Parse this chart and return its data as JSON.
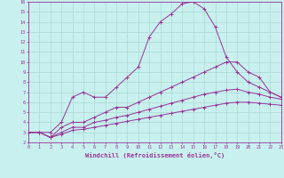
{
  "xlabel": "Windchill (Refroidissement éolien,°C)",
  "bg_color": "#c8f0ee",
  "grid_color": "#aad8d4",
  "line_color": "#993399",
  "xmin": 0,
  "xmax": 23,
  "ymin": 2,
  "ymax": 16,
  "lines": [
    {
      "x": [
        0,
        1,
        2,
        3,
        4,
        5,
        6,
        7,
        8,
        9,
        10,
        11,
        12,
        13,
        14,
        15,
        16,
        17,
        18,
        19,
        20,
        21,
        22,
        23
      ],
      "y": [
        3.0,
        3.0,
        3.0,
        4.0,
        6.5,
        7.0,
        6.5,
        6.5,
        7.5,
        8.5,
        9.5,
        12.5,
        14.0,
        14.8,
        15.8,
        16.0,
        15.3,
        13.5,
        10.5,
        9.0,
        8.0,
        7.5,
        7.0,
        6.5
      ]
    },
    {
      "x": [
        0,
        1,
        2,
        3,
        4,
        5,
        6,
        7,
        8,
        9,
        10,
        11,
        12,
        13,
        14,
        15,
        16,
        17,
        18,
        19,
        20,
        21,
        22,
        23
      ],
      "y": [
        3.0,
        3.0,
        2.5,
        3.5,
        4.0,
        4.0,
        4.5,
        5.0,
        5.5,
        5.5,
        6.0,
        6.5,
        7.0,
        7.5,
        8.0,
        8.5,
        9.0,
        9.5,
        10.0,
        10.0,
        9.0,
        8.5,
        7.0,
        6.5
      ]
    },
    {
      "x": [
        0,
        1,
        2,
        3,
        4,
        5,
        6,
        7,
        8,
        9,
        10,
        11,
        12,
        13,
        14,
        15,
        16,
        17,
        18,
        19,
        20,
        21,
        22,
        23
      ],
      "y": [
        3.0,
        3.0,
        2.5,
        3.0,
        3.5,
        3.5,
        4.0,
        4.2,
        4.5,
        4.7,
        5.0,
        5.3,
        5.6,
        5.9,
        6.2,
        6.5,
        6.8,
        7.0,
        7.2,
        7.3,
        7.0,
        6.8,
        6.5,
        6.3
      ]
    },
    {
      "x": [
        0,
        1,
        2,
        3,
        4,
        5,
        6,
        7,
        8,
        9,
        10,
        11,
        12,
        13,
        14,
        15,
        16,
        17,
        18,
        19,
        20,
        21,
        22,
        23
      ],
      "y": [
        3.0,
        3.0,
        2.5,
        2.8,
        3.2,
        3.3,
        3.5,
        3.7,
        3.9,
        4.1,
        4.3,
        4.5,
        4.7,
        4.9,
        5.1,
        5.3,
        5.5,
        5.7,
        5.9,
        6.0,
        6.0,
        5.9,
        5.8,
        5.7
      ]
    }
  ]
}
